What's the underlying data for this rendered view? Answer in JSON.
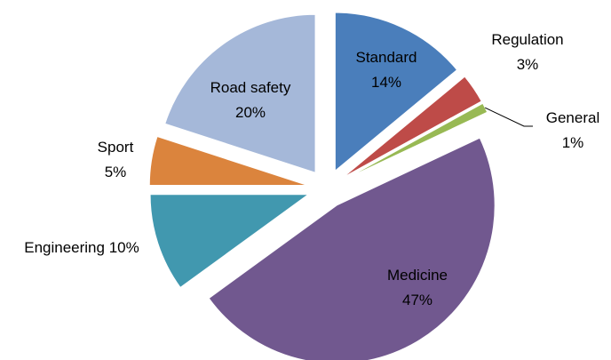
{
  "chart_data": {
    "type": "pie",
    "categories": [
      "Standard",
      "Regulation",
      "General",
      "Medicine",
      "Engineering",
      "Sport",
      "Road safety"
    ],
    "values": [
      14,
      3,
      1,
      47,
      10,
      5,
      20
    ],
    "value_labels": [
      "14%",
      "3%",
      "1%",
      "47%",
      "10%",
      "5%",
      "20%"
    ],
    "colors": [
      "#4a7ebb",
      "#be4b48",
      "#98b954",
      "#71588f",
      "#4198af",
      "#db843d",
      "#a5b8d9"
    ]
  }
}
